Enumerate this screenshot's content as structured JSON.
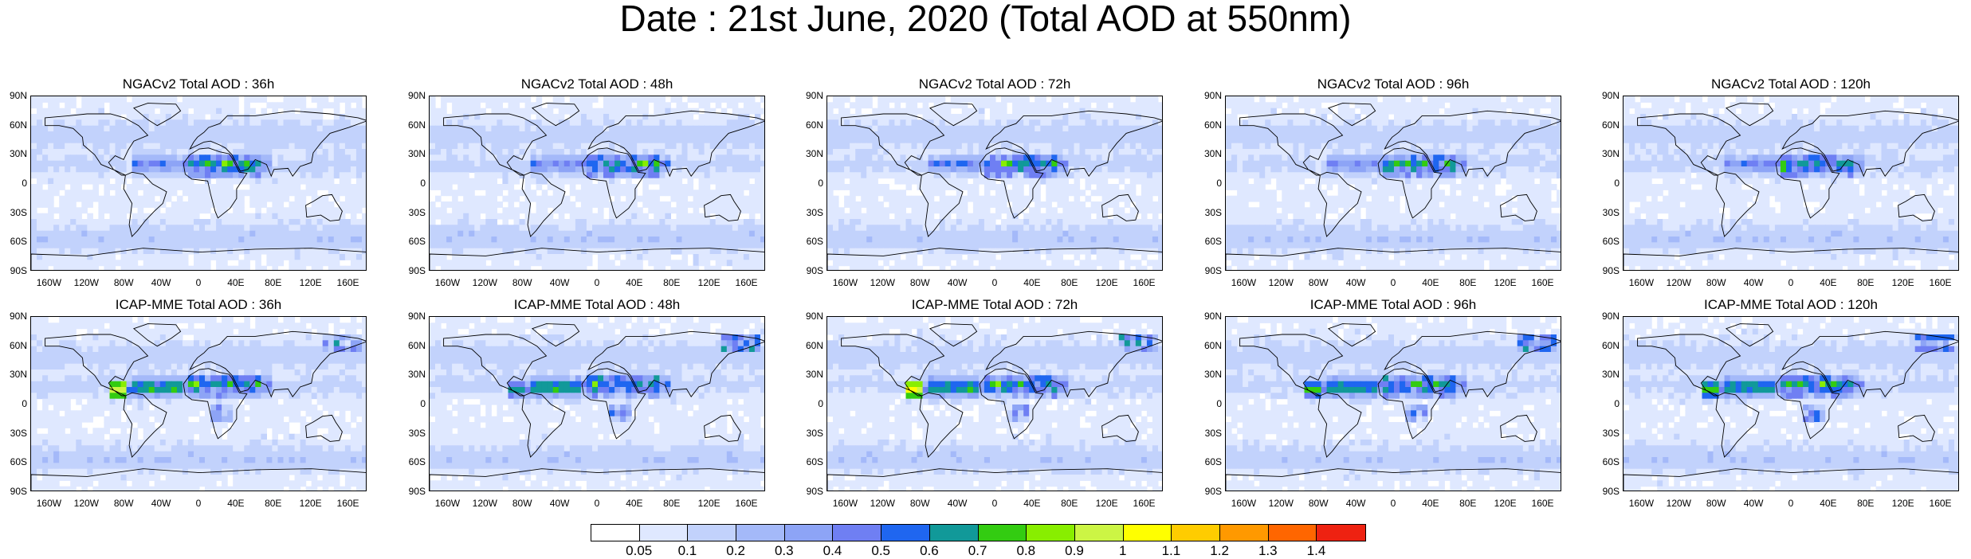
{
  "title": "Date : 21st June, 2020 (Total AOD at 550nm)",
  "axes": {
    "lat_labels": [
      "90N",
      "60N",
      "30N",
      "0",
      "30S",
      "60S",
      "90S"
    ],
    "lon_labels": [
      "160W",
      "120W",
      "80W",
      "40W",
      "0",
      "40E",
      "80E",
      "120E",
      "160E"
    ]
  },
  "panels": [
    {
      "title": "NGACv2 Total AOD : 36h",
      "model": "NGACv2",
      "forecast": "36h"
    },
    {
      "title": "NGACv2 Total AOD : 48h",
      "model": "NGACv2",
      "forecast": "48h"
    },
    {
      "title": "NGACv2 Total AOD : 72h",
      "model": "NGACv2",
      "forecast": "72h"
    },
    {
      "title": "NGACv2 Total AOD : 96h",
      "model": "NGACv2",
      "forecast": "96h"
    },
    {
      "title": "NGACv2 Total AOD : 120h",
      "model": "NGACv2",
      "forecast": "120h"
    },
    {
      "title": "ICAP-MME Total AOD : 36h",
      "model": "ICAP-MME",
      "forecast": "36h"
    },
    {
      "title": "ICAP-MME Total AOD : 48h",
      "model": "ICAP-MME",
      "forecast": "48h"
    },
    {
      "title": "ICAP-MME Total AOD : 72h",
      "model": "ICAP-MME",
      "forecast": "72h"
    },
    {
      "title": "ICAP-MME Total AOD : 96h",
      "model": "ICAP-MME",
      "forecast": "96h"
    },
    {
      "title": "ICAP-MME Total AOD : 120h",
      "model": "ICAP-MME",
      "forecast": "120h"
    }
  ],
  "colorbar": {
    "labels": [
      "0.05",
      "0.1",
      "0.2",
      "0.3",
      "0.4",
      "0.5",
      "0.6",
      "0.7",
      "0.8",
      "0.9",
      "1",
      "1.1",
      "1.2",
      "1.3",
      "1.4"
    ],
    "colors": [
      "#ffffff",
      "#dfe8ff",
      "#c2d2fc",
      "#a4b9f9",
      "#8da4f6",
      "#6f7ff3",
      "#1f66f0",
      "#119999",
      "#33cc11",
      "#88ee00",
      "#ccf544",
      "#ffff00",
      "#ffcc00",
      "#ff9900",
      "#ff6600",
      "#ee2211"
    ]
  }
}
